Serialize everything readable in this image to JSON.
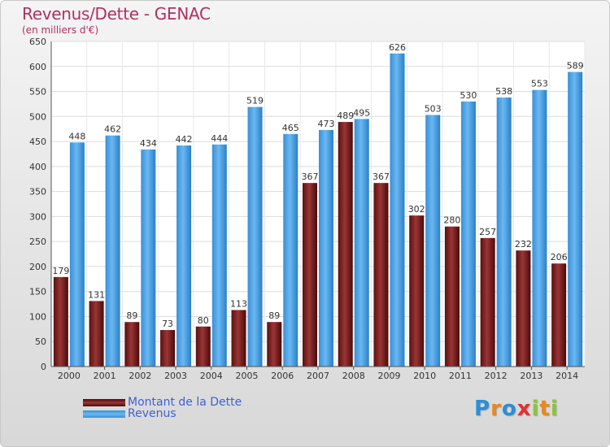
{
  "header": {
    "title": "Revenus/Dette - GENAC",
    "subtitle": "(en milliers d'€)"
  },
  "legend": {
    "items": [
      {
        "label": "Montant de la Dette",
        "color": "#7a1f1f"
      },
      {
        "label": "Revenus",
        "color": "#4a9fe2"
      }
    ]
  },
  "logo": {
    "letters": [
      {
        "ch": "P",
        "color": "#2a8fd6"
      },
      {
        "ch": "r",
        "color": "#e8891c"
      },
      {
        "ch": "o",
        "color": "#2a8fd6"
      },
      {
        "ch": "x",
        "color": "#e03030"
      },
      {
        "ch": "i",
        "color": "#8cc43c"
      },
      {
        "ch": "t",
        "color": "#e8891c"
      },
      {
        "ch": "i",
        "color": "#8cc43c"
      }
    ]
  },
  "chart_data": {
    "type": "bar",
    "title": "Revenus/Dette - GENAC",
    "subtitle": "(en milliers d'€)",
    "categories": [
      "2000",
      "2001",
      "2002",
      "2003",
      "2004",
      "2005",
      "2006",
      "2007",
      "2008",
      "2009",
      "2010",
      "2011",
      "2012",
      "2013",
      "2014"
    ],
    "series": [
      {
        "name": "Montant de la Dette",
        "color": "#7a1f1f",
        "values": [
          179,
          131,
          89,
          73,
          80,
          113,
          89,
          367,
          489,
          367,
          302,
          280,
          257,
          232,
          206
        ]
      },
      {
        "name": "Revenus",
        "color": "#4a9fe2",
        "values": [
          448,
          462,
          434,
          442,
          444,
          519,
          465,
          473,
          495,
          626,
          503,
          530,
          538,
          553,
          589
        ]
      }
    ],
    "ylim": [
      0,
      650
    ],
    "yticks": [
      0,
      50,
      100,
      150,
      200,
      250,
      300,
      350,
      400,
      450,
      500,
      550,
      600,
      650
    ],
    "grid": true,
    "legend_position": "bottom-left"
  }
}
